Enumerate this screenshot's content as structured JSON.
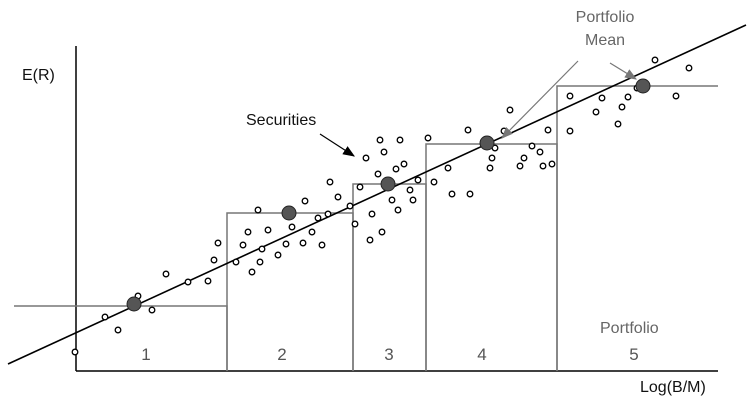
{
  "axes": {
    "y_label": "E(R)",
    "x_label": "Log(B/M)"
  },
  "annotations": {
    "securities": "Securities",
    "portfolio_mean_line1": "Portfolio",
    "portfolio_mean_line2": "Mean",
    "portfolio_label": "Portfolio"
  },
  "portfolios": [
    {
      "label": "1"
    },
    {
      "label": "2"
    },
    {
      "label": "3"
    },
    {
      "label": "4"
    },
    {
      "label": "5"
    }
  ],
  "colors": {
    "box_stroke": "#777777",
    "line": "#000000",
    "mean_dot": "#555555"
  }
}
